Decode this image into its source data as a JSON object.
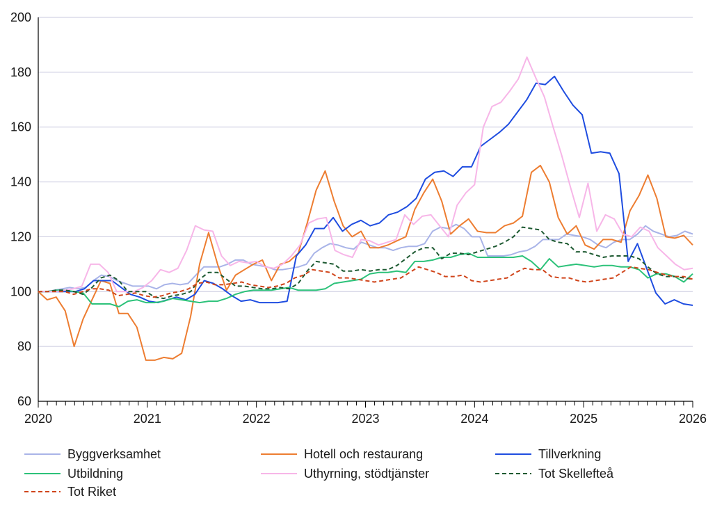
{
  "chart_data": {
    "type": "line",
    "title": "",
    "xlabel": "",
    "ylabel": "",
    "ylim": [
      60,
      200
    ],
    "y_ticks": [
      60,
      80,
      100,
      120,
      140,
      160,
      180,
      200
    ],
    "x_range": [
      2020,
      2026
    ],
    "x_ticks": [
      "2020",
      "2021",
      "2022",
      "2023",
      "2024",
      "2025",
      "2026"
    ],
    "grid": true,
    "legend_position": "bottom",
    "months_per_year": 12,
    "series": [
      {
        "name": "Byggverksamhet",
        "color": "#a9b4e8",
        "dash": "solid",
        "values": [
          100,
          100,
          100.5,
          101,
          101.5,
          101,
          101.5,
          104,
          106,
          105.5,
          104,
          103,
          102,
          102,
          102,
          101,
          102.5,
          103,
          102.5,
          103,
          106,
          109,
          109,
          109,
          110,
          111.5,
          111.5,
          110,
          109.5,
          109,
          108,
          108,
          108.5,
          109,
          110,
          114,
          116,
          117.5,
          117,
          116,
          115.5,
          118,
          117,
          116,
          116,
          115,
          116,
          116.5,
          116.5,
          117.5,
          122,
          123.5,
          123,
          124.5,
          123,
          120,
          120,
          113,
          113,
          113,
          113.5,
          114.5,
          115,
          116.5,
          119,
          119,
          119,
          121,
          120.5,
          120,
          119,
          117,
          116,
          118,
          119,
          119,
          121,
          124,
          122,
          121,
          120,
          120.5,
          122,
          121
        ]
      },
      {
        "name": "Hotell och restaurang",
        "color": "#ed7d31",
        "dash": "solid",
        "values": [
          100,
          97,
          98,
          93,
          80,
          90,
          97,
          104,
          103,
          92,
          92,
          87,
          75,
          75,
          76,
          75.5,
          77.5,
          91,
          110,
          121.5,
          110,
          100.5,
          106,
          108,
          110,
          111.5,
          104,
          110,
          111,
          114,
          125,
          137,
          144,
          133,
          124,
          120,
          122,
          116,
          116,
          117,
          118.5,
          120,
          130,
          136,
          141,
          133,
          121,
          124,
          126.5,
          122,
          121.5,
          121.5,
          124,
          125,
          127.5,
          143.5,
          146,
          140,
          127,
          121,
          124,
          117,
          115.5,
          119,
          119,
          118,
          129.5,
          135,
          142.5,
          134,
          120,
          119.5,
          120.5,
          117
        ]
      },
      {
        "name": "Tillverkning",
        "color": "#1f4de0",
        "dash": "solid",
        "values": [
          100,
          100,
          100,
          100,
          100,
          101,
          104,
          104,
          104,
          101.5,
          99,
          98,
          96.5,
          96,
          97,
          98,
          97,
          99,
          104,
          103,
          101,
          98.5,
          96.5,
          97,
          96,
          96,
          96,
          96.5,
          113,
          117,
          123,
          123,
          127,
          122,
          124.5,
          126,
          124,
          125,
          128,
          129,
          131,
          134,
          141,
          143.5,
          144,
          142,
          145.5,
          145.5,
          153,
          155.5,
          158,
          161,
          165.5,
          170,
          176,
          175.5,
          178.5,
          173,
          168,
          164.5,
          150.5,
          151,
          150.5,
          143,
          111,
          117.5,
          108.5,
          99.5,
          95.5,
          97,
          95.5,
          95
        ]
      },
      {
        "name": "Utbildning",
        "color": "#2dc27a",
        "dash": "solid",
        "values": [
          100,
          100,
          100.5,
          100.5,
          100,
          99.5,
          95.5,
          95.5,
          95.5,
          94.5,
          96.5,
          97,
          96,
          96,
          96.5,
          97.5,
          97,
          96.5,
          96,
          96.5,
          96.5,
          97.5,
          99,
          100,
          100.5,
          100.5,
          100.5,
          101,
          101.5,
          100.5,
          100.5,
          100.5,
          101,
          103,
          103.5,
          104,
          104.5,
          106.5,
          107,
          107,
          107.5,
          107,
          111,
          111,
          111.5,
          112.5,
          112.5,
          113.5,
          114,
          112.5,
          112.5,
          112.5,
          112.5,
          112.5,
          113,
          111,
          108,
          112,
          109,
          109.5,
          110,
          109.5,
          109,
          109.5,
          109.5,
          109,
          109,
          108,
          105,
          106.5,
          106.5,
          105.5,
          103.5,
          106.5
        ]
      },
      {
        "name": "Uthyrning, stödtjänster",
        "color": "#f7b6e8",
        "dash": "solid",
        "values": [
          100,
          100,
          100,
          100.5,
          101,
          102,
          110,
          110,
          107,
          100,
          100,
          100,
          101.5,
          104,
          108,
          107,
          108.5,
          115,
          124,
          122.5,
          122,
          113,
          109.5,
          111,
          110.5,
          111,
          109,
          108.5,
          110,
          113,
          117,
          125,
          126.5,
          127,
          115,
          113.5,
          112.5,
          119,
          118.5,
          117,
          118,
          119,
          128,
          124.5,
          127.5,
          128,
          124,
          120,
          131.5,
          136,
          139,
          160,
          167.5,
          169,
          173,
          177.5,
          185.5,
          178,
          171,
          160,
          149.5,
          138,
          127,
          139.5,
          122,
          128,
          126.5,
          121,
          120,
          123.5,
          122,
          116,
          113,
          110,
          108,
          108.5
        ]
      },
      {
        "name": "Tot Skellefteå",
        "color": "#1e5a32",
        "dash": "dashed",
        "values": [
          100,
          100,
          100.5,
          100.5,
          100,
          99,
          101.5,
          105,
          106,
          104,
          100,
          100,
          100,
          98,
          97.5,
          98.5,
          99,
          100,
          104.5,
          107,
          107,
          104.5,
          102,
          102,
          101.5,
          101,
          101,
          101.5,
          101,
          103,
          107.5,
          111,
          110.5,
          110,
          107.5,
          107.5,
          108,
          107.5,
          108,
          108,
          109.5,
          112,
          114.5,
          116,
          116,
          112,
          114,
          114,
          113.5,
          114.5,
          115.5,
          116.5,
          118,
          120,
          123.5,
          123,
          122.5,
          119,
          118,
          117.5,
          114.5,
          114.5,
          113.5,
          112.5,
          113,
          113,
          113,
          112,
          109,
          106.5,
          105.5,
          105.5,
          105,
          104.5
        ]
      },
      {
        "name": "Tot Riket",
        "color": "#d0451b",
        "dash": "dashed",
        "values": [
          100,
          100,
          100,
          100,
          99,
          100,
          101,
          101,
          100.5,
          98.5,
          99,
          99.5,
          98.5,
          98,
          98.5,
          99.5,
          100,
          101,
          103,
          103.5,
          102.5,
          102.5,
          103,
          103.5,
          102.5,
          102,
          101.5,
          102,
          103,
          105,
          106,
          108,
          107.5,
          107,
          105,
          105,
          104.5,
          104,
          103.5,
          104,
          104.5,
          105,
          107,
          109,
          108,
          107,
          105.5,
          105.5,
          106,
          104,
          103.5,
          104,
          104.5,
          105,
          107,
          108.5,
          108,
          108,
          105.5,
          105,
          105,
          104,
          103.5,
          104,
          104.5,
          105,
          107,
          109,
          108.5,
          108,
          107,
          106,
          105.5,
          105.5,
          104.5
        ]
      }
    ]
  }
}
